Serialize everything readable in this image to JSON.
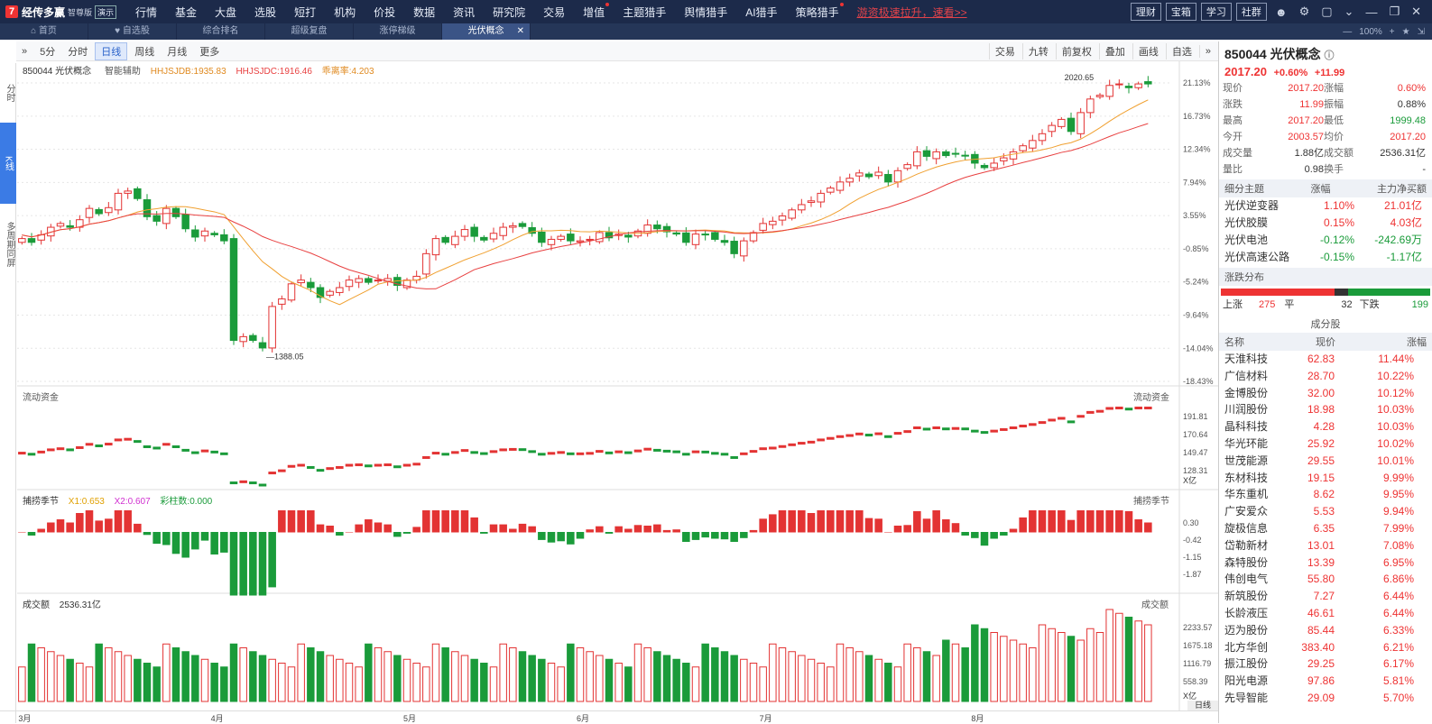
{
  "app": {
    "name": "经传多赢",
    "edition": "智尊版",
    "demo": "演示"
  },
  "menu": [
    {
      "label": "行情"
    },
    {
      "label": "基金"
    },
    {
      "label": "大盘"
    },
    {
      "label": "选股"
    },
    {
      "label": "短打"
    },
    {
      "label": "机构"
    },
    {
      "label": "价投"
    },
    {
      "label": "数据"
    },
    {
      "label": "资讯"
    },
    {
      "label": "研究院"
    },
    {
      "label": "交易"
    },
    {
      "label": "增值",
      "dot": true
    },
    {
      "label": "主题猎手"
    },
    {
      "label": "舆情猎手"
    },
    {
      "label": "AI猎手"
    },
    {
      "label": "策略猎手",
      "dot": true
    }
  ],
  "promo": "游资极速拉升，速看>>",
  "top_right": {
    "boxes": [
      "理财",
      "宝箱",
      "学习",
      "社群"
    ]
  },
  "tabs": [
    {
      "label": "首页",
      "icon": "home-icon"
    },
    {
      "label": "自选股",
      "icon": "heart-icon"
    },
    {
      "label": "综合排名"
    },
    {
      "label": "超级复盘"
    },
    {
      "label": "涨停梯级"
    },
    {
      "label": "光伏概念",
      "active": true
    }
  ],
  "tab_right": {
    "zoom": "100%"
  },
  "left_nav": [
    "分时",
    "K线",
    "多周期同屏"
  ],
  "toolbar": {
    "left": [
      "5分",
      "分时",
      "日线",
      "周线",
      "月线",
      "更多"
    ],
    "active": "日线",
    "right": [
      "交易",
      "九转",
      "前复权",
      "叠加",
      "画线",
      "自选"
    ]
  },
  "chart_header": {
    "code_name": "850044 光伏概念",
    "assist": "智能辅助",
    "hh1": "HHJSJDB:1935.83",
    "hh2": "HHJSJDC:1916.46",
    "hh3": "乖离率:4.203"
  },
  "panels": {
    "flow": "流动资金",
    "season": "捕捞季节",
    "season_x1": "X1:0.653",
    "season_x2": "X2:0.607",
    "season_color": "彩柱数:0.000",
    "volume": "成交额",
    "volume_value": "2536.31亿"
  },
  "chart_data": {
    "type": "candlestick",
    "ylim": [
      -18.43,
      21.13
    ],
    "y_ticks": [
      "21.13%",
      "16.73%",
      "12.34%",
      "7.94%",
      "3.55%",
      "-0.85%",
      "-5.24%",
      "-9.64%",
      "-14.04%",
      "-18.43%"
    ],
    "x_labels": [
      "3月",
      "4月",
      "5月",
      "6月",
      "7月",
      "8月"
    ],
    "x_label_index": [
      0,
      20,
      40,
      58,
      77,
      99
    ],
    "high_label": "2020.65",
    "low_label": "1388.05",
    "closes": [
      0.5,
      0.0,
      1.0,
      2.0,
      2.5,
      2.0,
      3.0,
      4.5,
      3.8,
      4.6,
      6.5,
      6.8,
      5.8,
      3.4,
      2.8,
      4.5,
      3.4,
      1.8,
      0.7,
      1.5,
      1.0,
      0.2,
      -13.0,
      -12.5,
      -13.0,
      -14.0,
      -8.5,
      -7.5,
      -5.5,
      -5.0,
      -6.0,
      -7.3,
      -6.5,
      -6.0,
      -5.0,
      -4.8,
      -5.3,
      -5.0,
      -4.8,
      -5.7,
      -5.0,
      -4.5,
      -1.5,
      0.5,
      0.0,
      0.8,
      1.7,
      0.8,
      0.3,
      1.2,
      2.0,
      2.2,
      2.1,
      1.2,
      0.0,
      0.4,
      0.8,
      0.2,
      0.2,
      0.4,
      1.3,
      0.6,
      1.1,
      0.7,
      1.5,
      2.3,
      1.8,
      1.4,
      1.1,
      0.0,
      1.1,
      1.0,
      0.4,
      0.0,
      -1.5,
      0.2,
      1.3,
      2.5,
      2.8,
      3.5,
      4.3,
      5.0,
      5.5,
      6.5,
      7.2,
      8.0,
      8.5,
      9.2,
      8.7,
      9.3,
      8.0,
      9.5,
      10.3,
      12.0,
      11.4,
      12.0,
      11.5,
      11.7,
      11.5,
      10.5,
      9.9,
      10.5,
      11.2,
      12.0,
      12.8,
      13.5,
      14.4,
      15.5,
      16.3,
      14.7,
      17.2,
      19.0,
      19.5,
      20.8,
      21.0,
      20.5,
      21.0,
      21.0
    ],
    "x_count": 120,
    "flow_ticks": [
      "191.81",
      "170.64",
      "149.47",
      "128.31"
    ],
    "flow_unit": "X亿",
    "season_ticks": [
      "0.30",
      "-0.42",
      "-1.15",
      "-1.87"
    ],
    "volume_ticks": [
      "2233.57",
      "1675.18",
      "1116.79",
      "558.39"
    ],
    "volume_unit": "X亿"
  },
  "quote": {
    "title": "850044 光伏概念",
    "price": "2017.20",
    "pct": "+0.60%",
    "chg": "+11.99",
    "rows": [
      [
        "现价",
        "2017.20",
        "涨幅",
        "0.60%"
      ],
      [
        "涨跌",
        "11.99",
        "振幅",
        "0.88%"
      ],
      [
        "最高",
        "2017.20",
        "最低",
        "1999.48"
      ],
      [
        "今开",
        "2003.57",
        "均价",
        "2017.20"
      ],
      [
        "成交量",
        "1.88亿",
        "成交额",
        "2536.31亿"
      ],
      [
        "量比",
        "0.98",
        "换手",
        "-"
      ]
    ]
  },
  "sub_themes": {
    "head": [
      "细分主题",
      "涨幅",
      "主力净买额"
    ],
    "rows": [
      [
        "光伏逆变器",
        "1.10%",
        "21.01亿"
      ],
      [
        "光伏胶膜",
        "0.15%",
        "4.03亿"
      ],
      [
        "光伏电池",
        "-0.12%",
        "-242.69万"
      ],
      [
        "光伏高速公路",
        "-0.15%",
        "-1.17亿"
      ]
    ]
  },
  "dist": {
    "title": "涨跌分布",
    "up_label": "上涨",
    "up": "275",
    "flat_label": "平",
    "flat": "32",
    "down_label": "下跌",
    "down": "199"
  },
  "constituents": {
    "title": "成分股",
    "head": [
      "名称",
      "现价",
      "涨幅"
    ],
    "rows": [
      [
        "天淮科技",
        "62.83",
        "11.44%"
      ],
      [
        "广信材料",
        "28.70",
        "10.22%"
      ],
      [
        "金博股份",
        "32.00",
        "10.12%"
      ],
      [
        "川润股份",
        "18.98",
        "10.03%"
      ],
      [
        "晶科科技",
        "4.28",
        "10.03%"
      ],
      [
        "华光环能",
        "25.92",
        "10.02%"
      ],
      [
        "世茂能源",
        "29.55",
        "10.01%"
      ],
      [
        "东材科技",
        "19.15",
        "9.99%"
      ],
      [
        "华东重机",
        "8.62",
        "9.95%"
      ],
      [
        "广安爱众",
        "5.53",
        "9.94%"
      ],
      [
        "旋极信息",
        "6.35",
        "7.99%"
      ],
      [
        "岱勒新材",
        "13.01",
        "7.08%"
      ],
      [
        "森特股份",
        "13.39",
        "6.95%"
      ],
      [
        "伟创电气",
        "55.80",
        "6.86%"
      ],
      [
        "新筑股份",
        "7.27",
        "6.44%"
      ],
      [
        "长龄液压",
        "46.61",
        "6.44%"
      ],
      [
        "迈为股份",
        "85.44",
        "6.33%"
      ],
      [
        "北方华创",
        "383.40",
        "6.21%"
      ],
      [
        "振江股份",
        "29.25",
        "6.17%"
      ],
      [
        "阳光电源",
        "97.86",
        "5.81%"
      ],
      [
        "先导智能",
        "29.09",
        "5.70%"
      ]
    ]
  },
  "bottom": {
    "period": "日线"
  },
  "colors": {
    "up": "#e33333",
    "down": "#1a9b3a",
    "ma1": "#f0a030",
    "ma2": "#e84040"
  }
}
